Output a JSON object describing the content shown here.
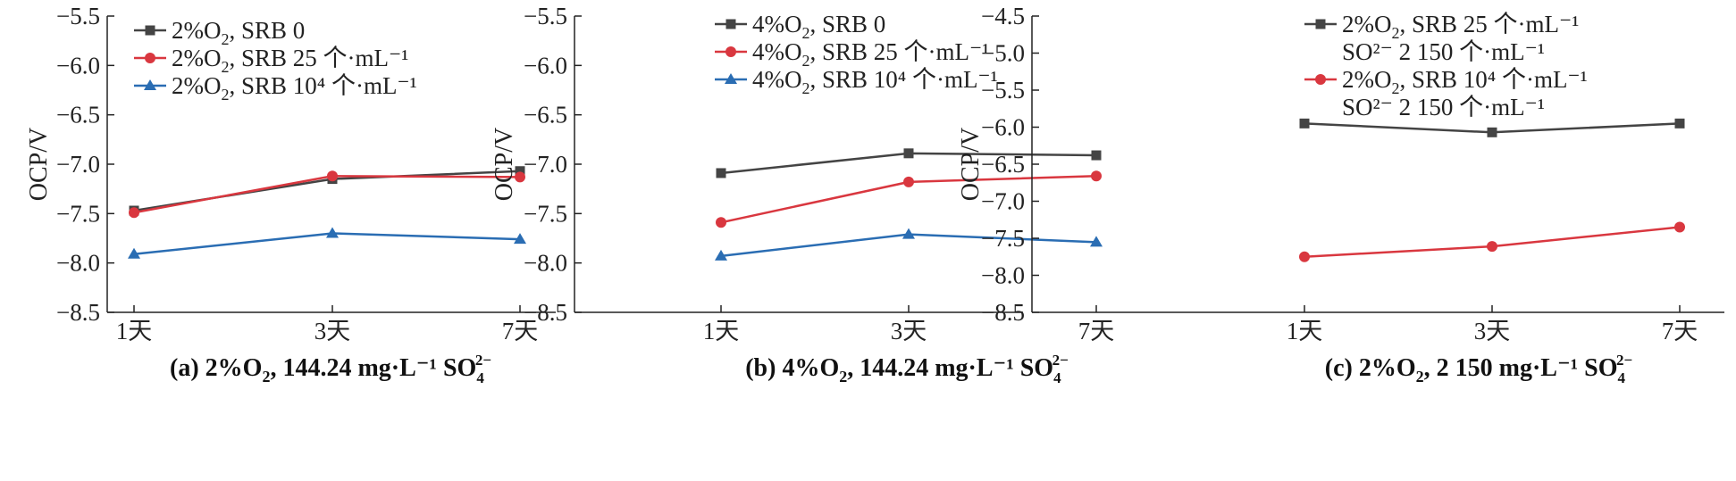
{
  "chart_data": [
    {
      "type": "line",
      "panel_caption": "(a) 2%O2, 144.24 mg·L⁻¹ SO4²⁻",
      "caption_parts": {
        "pre": "(a) 2%O",
        "sub": "2",
        "mid": ", 144.24 mg·L⁻¹ SO",
        "sub2": "4",
        "sup2": "2−"
      },
      "ylabel": "OCP/V",
      "categories": [
        "1天",
        "3天",
        "7天"
      ],
      "ylim": [
        -8.5,
        -5.5
      ],
      "yticks": [
        "-5.5",
        "-6.0",
        "-6.5",
        "-7.0",
        "-7.5",
        "-8.0",
        "-8.5"
      ],
      "legend_position": "top-left",
      "series": [
        {
          "name": "2%O2, SRB 0",
          "legend": {
            "pre": "2%O",
            "sub": "2",
            "post": ", SRB 0"
          },
          "color": "#444444",
          "marker": "square",
          "values": [
            -7.47,
            -7.15,
            -7.07
          ]
        },
        {
          "name": "2%O2, SRB 25 个·mL⁻¹",
          "legend": {
            "pre": "2%O",
            "sub": "2",
            "post": ", SRB 25 个·mL⁻¹"
          },
          "color": "#d9373f",
          "marker": "circle",
          "values": [
            -7.49,
            -7.12,
            -7.13
          ]
        },
        {
          "name": "2%O2, SRB 10⁴ 个·mL⁻¹",
          "legend": {
            "pre": "2%O",
            "sub": "2",
            "post": ", SRB 10⁴ 个·mL⁻¹"
          },
          "color": "#2a6db3",
          "marker": "triangle",
          "values": [
            -7.91,
            -7.7,
            -7.76
          ]
        }
      ]
    },
    {
      "type": "line",
      "panel_caption": "(b) 4%O2, 144.24 mg·L⁻¹ SO4²⁻",
      "caption_parts": {
        "pre": "(b) 4%O",
        "sub": "2",
        "mid": ", 144.24 mg·L⁻¹ SO",
        "sub2": "4",
        "sup2": "2−"
      },
      "ylabel": "OCP/V",
      "categories": [
        "1天",
        "3天",
        "7天"
      ],
      "ylim": [
        -8.5,
        -5.5
      ],
      "yticks": [
        "-5.5",
        "-6.0",
        "-6.5",
        "-7.0",
        "-7.5",
        "-8.0",
        "-8.5"
      ],
      "legend_position": "top-left",
      "series": [
        {
          "name": "4%O2, SRB 0",
          "legend": {
            "pre": "4%O",
            "sub": "2",
            "post": ", SRB 0"
          },
          "color": "#444444",
          "marker": "square",
          "values": [
            -7.09,
            -6.89,
            -6.91
          ]
        },
        {
          "name": "4%O2, SRB 25 个·mL⁻¹",
          "legend": {
            "pre": "4%O",
            "sub": "2",
            "post": ", SRB 25 个·mL⁻¹"
          },
          "color": "#d9373f",
          "marker": "circle",
          "values": [
            -7.59,
            -7.18,
            -7.12
          ]
        },
        {
          "name": "4%O2, SRB 10⁴ 个·mL⁻¹",
          "legend": {
            "pre": "4%O",
            "sub": "2",
            "post": ", SRB 10⁴ 个·mL⁻¹"
          },
          "color": "#2a6db3",
          "marker": "triangle",
          "values": [
            -7.93,
            -7.71,
            -7.79
          ]
        }
      ]
    },
    {
      "type": "line",
      "panel_caption": "(c) 2%O2, 2 150 mg·L⁻¹ SO4²⁻",
      "caption_parts": {
        "pre": "(c) 2%O",
        "sub": "2",
        "mid": ", 2 150 mg·L⁻¹ SO",
        "sub2": "4",
        "sup2": "2−"
      },
      "ylabel": "OCP/V",
      "categories": [
        "1天",
        "3天",
        "7天"
      ],
      "ylim": [
        -8.5,
        -4.5
      ],
      "yticks": [
        "-4.5",
        "-5.0",
        "-5.5",
        "-6.0",
        "-6.5",
        "-7.0",
        "-7.5",
        "-8.0",
        "-8.5"
      ],
      "legend_position": "top-left",
      "series": [
        {
          "name": "2%O2, SRB 25 个·mL⁻¹ SO²⁻ 2 150 个·mL⁻¹",
          "legend": {
            "pre": "2%O",
            "sub": "2",
            "post": ", SRB  25 个·mL⁻¹",
            "line2": "SO²⁻  2 150 个·mL⁻¹"
          },
          "color": "#444444",
          "marker": "square",
          "values": [
            -5.95,
            -6.07,
            -5.95
          ]
        },
        {
          "name": "2%O2, SRB 10⁴ 个·mL⁻¹ SO²⁻ 2 150 个·mL⁻¹",
          "legend": {
            "pre": "2%O",
            "sub": "2",
            "post": ", SRB  10⁴ 个·mL⁻¹",
            "line2": "SO²⁻  2 150 个·mL⁻¹"
          },
          "color": "#d9373f",
          "marker": "circle",
          "values": [
            -7.75,
            -7.61,
            -7.35
          ]
        }
      ]
    }
  ]
}
